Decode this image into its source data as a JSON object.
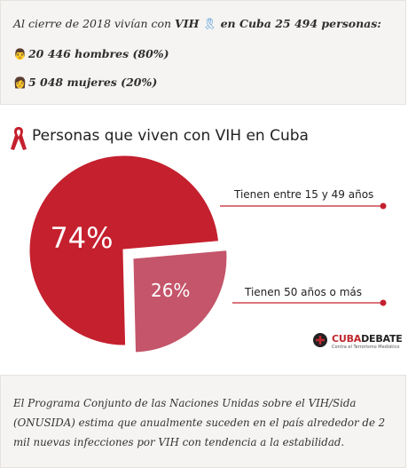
{
  "summary": {
    "line1_text": "Al cierre de 2018 vivían con ",
    "line1_bold_vih": "VIH",
    "line1_bold_rest": " en Cuba 25 494 personas:",
    "men": "20 446 hombres (80%)",
    "women": "5 048 mujeres (20%)",
    "ribbon_color": "#3b8fd6"
  },
  "chart_data": {
    "type": "pie",
    "title": "Personas que viven con VIH en Cuba",
    "slices": [
      {
        "label": "Tienen entre 15 y 49 años",
        "value": 74,
        "display": "74%",
        "color": "#c5202e"
      },
      {
        "label": "Tienen 50 años o más",
        "value": 26,
        "display": "26%",
        "color": "#c4556a",
        "exploded": true
      }
    ],
    "callout_line_color": "#c5202e"
  },
  "logo": {
    "text_red": "CUBA",
    "text_dark": "DEBATE",
    "tagline": "Contra el Terrorismo Mediático"
  },
  "footer": {
    "paragraph": "El Programa Conjunto de las Naciones Unidas sobre el VIH/Sida (ONUSIDA) estima que anualmente suceden en el país alrededor de 2 mil nuevas infecciones por VIH con tendencia a la estabilidad."
  }
}
